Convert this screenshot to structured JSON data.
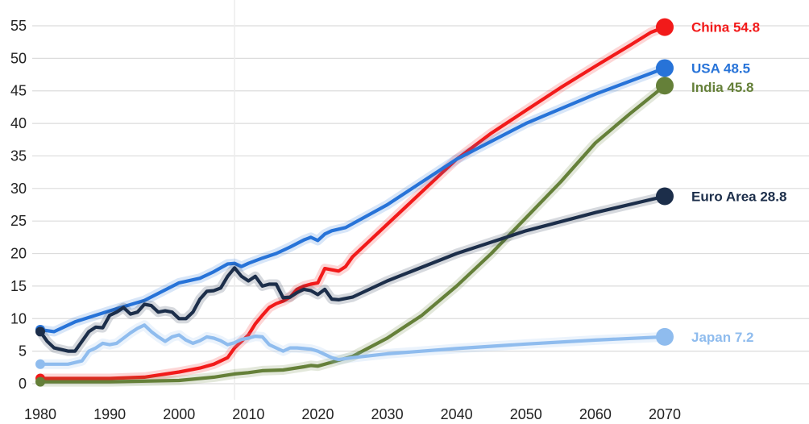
{
  "chart_data": {
    "type": "line",
    "title": "",
    "xlabel": "",
    "ylabel": "",
    "xlim": [
      1980,
      2070
    ],
    "ylim": [
      0,
      55
    ],
    "grid": true,
    "legend": "end-of-line labels",
    "x_ticks": [
      "1980",
      "1990",
      "2000",
      "2010",
      "2020",
      "2030",
      "2040",
      "2050",
      "2060",
      "2070"
    ],
    "y_ticks": [
      "0",
      "5",
      "10",
      "15",
      "20",
      "25",
      "30",
      "35",
      "40",
      "45",
      "50",
      "55"
    ],
    "series": [
      {
        "name": "China",
        "color": "#f21a1a",
        "end_label": "China 54.8",
        "points": [
          [
            1980,
            0.8
          ],
          [
            1985,
            0.8
          ],
          [
            1990,
            0.8
          ],
          [
            1995,
            1.0
          ],
          [
            2000,
            1.8
          ],
          [
            2003,
            2.4
          ],
          [
            2005,
            3.0
          ],
          [
            2007,
            4.0
          ],
          [
            2008,
            5.5
          ],
          [
            2010,
            7.5
          ],
          [
            2011,
            9.2
          ],
          [
            2012,
            10.5
          ],
          [
            2013,
            11.7
          ],
          [
            2014,
            12.3
          ],
          [
            2015,
            12.7
          ],
          [
            2016,
            13.3
          ],
          [
            2017,
            14.5
          ],
          [
            2018,
            15.0
          ],
          [
            2019,
            15.3
          ],
          [
            2020,
            15.5
          ],
          [
            2021,
            17.7
          ],
          [
            2022,
            17.5
          ],
          [
            2023,
            17.3
          ],
          [
            2024,
            18.0
          ],
          [
            2025,
            19.5
          ],
          [
            2030,
            24.5
          ],
          [
            2035,
            29.5
          ],
          [
            2040,
            34.5
          ],
          [
            2045,
            38.5
          ],
          [
            2050,
            42.0
          ],
          [
            2055,
            45.5
          ],
          [
            2060,
            48.8
          ],
          [
            2065,
            52.0
          ],
          [
            2068,
            54.0
          ],
          [
            2070,
            54.8
          ]
        ]
      },
      {
        "name": "USA",
        "color": "#2773d8",
        "end_label": "USA 48.5",
        "points": [
          [
            1980,
            8.3
          ],
          [
            1982,
            8.0
          ],
          [
            1985,
            9.5
          ],
          [
            1990,
            11.2
          ],
          [
            1995,
            12.8
          ],
          [
            2000,
            15.5
          ],
          [
            2003,
            16.2
          ],
          [
            2005,
            17.2
          ],
          [
            2007,
            18.4
          ],
          [
            2008,
            18.5
          ],
          [
            2009,
            18.0
          ],
          [
            2010,
            18.5
          ],
          [
            2012,
            19.3
          ],
          [
            2014,
            20.0
          ],
          [
            2016,
            21.0
          ],
          [
            2018,
            22.1
          ],
          [
            2019,
            22.5
          ],
          [
            2020,
            22.0
          ],
          [
            2021,
            23.0
          ],
          [
            2022,
            23.5
          ],
          [
            2024,
            24.0
          ],
          [
            2030,
            27.5
          ],
          [
            2040,
            34.5
          ],
          [
            2050,
            40.0
          ],
          [
            2060,
            44.5
          ],
          [
            2070,
            48.5
          ]
        ]
      },
      {
        "name": "India",
        "color": "#658039",
        "end_label": "India 45.8",
        "points": [
          [
            1980,
            0.3
          ],
          [
            1990,
            0.3
          ],
          [
            2000,
            0.5
          ],
          [
            2005,
            1.0
          ],
          [
            2008,
            1.5
          ],
          [
            2010,
            1.7
          ],
          [
            2012,
            2.0
          ],
          [
            2015,
            2.1
          ],
          [
            2018,
            2.6
          ],
          [
            2019,
            2.8
          ],
          [
            2020,
            2.7
          ],
          [
            2022,
            3.3
          ],
          [
            2025,
            4.2
          ],
          [
            2030,
            7.0
          ],
          [
            2035,
            10.5
          ],
          [
            2040,
            15.0
          ],
          [
            2045,
            20.0
          ],
          [
            2050,
            25.5
          ],
          [
            2055,
            31.0
          ],
          [
            2060,
            37.0
          ],
          [
            2065,
            41.5
          ],
          [
            2070,
            45.8
          ]
        ]
      },
      {
        "name": "Euro Area",
        "color": "#1c2e4a",
        "end_label": "Euro Area 28.8",
        "points": [
          [
            1980,
            8.0
          ],
          [
            1981,
            6.5
          ],
          [
            1982,
            5.5
          ],
          [
            1984,
            5.0
          ],
          [
            1985,
            5.0
          ],
          [
            1986,
            6.5
          ],
          [
            1987,
            8.0
          ],
          [
            1988,
            8.7
          ],
          [
            1989,
            8.6
          ],
          [
            1990,
            10.5
          ],
          [
            1991,
            11.0
          ],
          [
            1992,
            11.7
          ],
          [
            1993,
            10.7
          ],
          [
            1994,
            11.0
          ],
          [
            1995,
            12.2
          ],
          [
            1996,
            12.0
          ],
          [
            1997,
            11.0
          ],
          [
            1998,
            11.2
          ],
          [
            1999,
            11.0
          ],
          [
            2000,
            10.0
          ],
          [
            2001,
            10.0
          ],
          [
            2002,
            11.0
          ],
          [
            2003,
            13.0
          ],
          [
            2004,
            14.2
          ],
          [
            2005,
            14.3
          ],
          [
            2006,
            14.7
          ],
          [
            2007,
            16.5
          ],
          [
            2008,
            17.8
          ],
          [
            2009,
            16.5
          ],
          [
            2010,
            15.8
          ],
          [
            2011,
            16.5
          ],
          [
            2012,
            15.0
          ],
          [
            2013,
            15.3
          ],
          [
            2014,
            15.3
          ],
          [
            2015,
            13.2
          ],
          [
            2016,
            13.3
          ],
          [
            2017,
            14.0
          ],
          [
            2018,
            14.5
          ],
          [
            2019,
            14.3
          ],
          [
            2020,
            13.7
          ],
          [
            2021,
            14.5
          ],
          [
            2022,
            13.0
          ],
          [
            2023,
            12.9
          ],
          [
            2025,
            13.3
          ],
          [
            2030,
            15.8
          ],
          [
            2040,
            20.0
          ],
          [
            2050,
            23.5
          ],
          [
            2060,
            26.3
          ],
          [
            2070,
            28.8
          ]
        ]
      },
      {
        "name": "Japan",
        "color": "#8fbcee",
        "end_label": "Japan 7.2",
        "points": [
          [
            1980,
            3.0
          ],
          [
            1982,
            3.0
          ],
          [
            1984,
            3.0
          ],
          [
            1986,
            3.5
          ],
          [
            1987,
            5.0
          ],
          [
            1988,
            5.5
          ],
          [
            1989,
            6.2
          ],
          [
            1990,
            6.0
          ],
          [
            1991,
            6.2
          ],
          [
            1992,
            7.0
          ],
          [
            1993,
            7.8
          ],
          [
            1994,
            8.5
          ],
          [
            1995,
            9.0
          ],
          [
            1996,
            8.0
          ],
          [
            1997,
            7.2
          ],
          [
            1998,
            6.5
          ],
          [
            1999,
            7.2
          ],
          [
            2000,
            7.5
          ],
          [
            2001,
            6.7
          ],
          [
            2002,
            6.2
          ],
          [
            2003,
            6.6
          ],
          [
            2004,
            7.2
          ],
          [
            2005,
            7.0
          ],
          [
            2006,
            6.6
          ],
          [
            2007,
            6.0
          ],
          [
            2008,
            6.3
          ],
          [
            2009,
            6.8
          ],
          [
            2010,
            7.0
          ],
          [
            2011,
            7.3
          ],
          [
            2012,
            7.2
          ],
          [
            2013,
            6.0
          ],
          [
            2014,
            5.5
          ],
          [
            2015,
            5.0
          ],
          [
            2016,
            5.5
          ],
          [
            2017,
            5.5
          ],
          [
            2018,
            5.4
          ],
          [
            2019,
            5.3
          ],
          [
            2020,
            5.0
          ],
          [
            2021,
            4.5
          ],
          [
            2022,
            4.0
          ],
          [
            2023,
            3.7
          ],
          [
            2025,
            4.0
          ],
          [
            2030,
            4.6
          ],
          [
            2040,
            5.4
          ],
          [
            2050,
            6.1
          ],
          [
            2060,
            6.7
          ],
          [
            2070,
            7.2
          ]
        ]
      }
    ]
  }
}
